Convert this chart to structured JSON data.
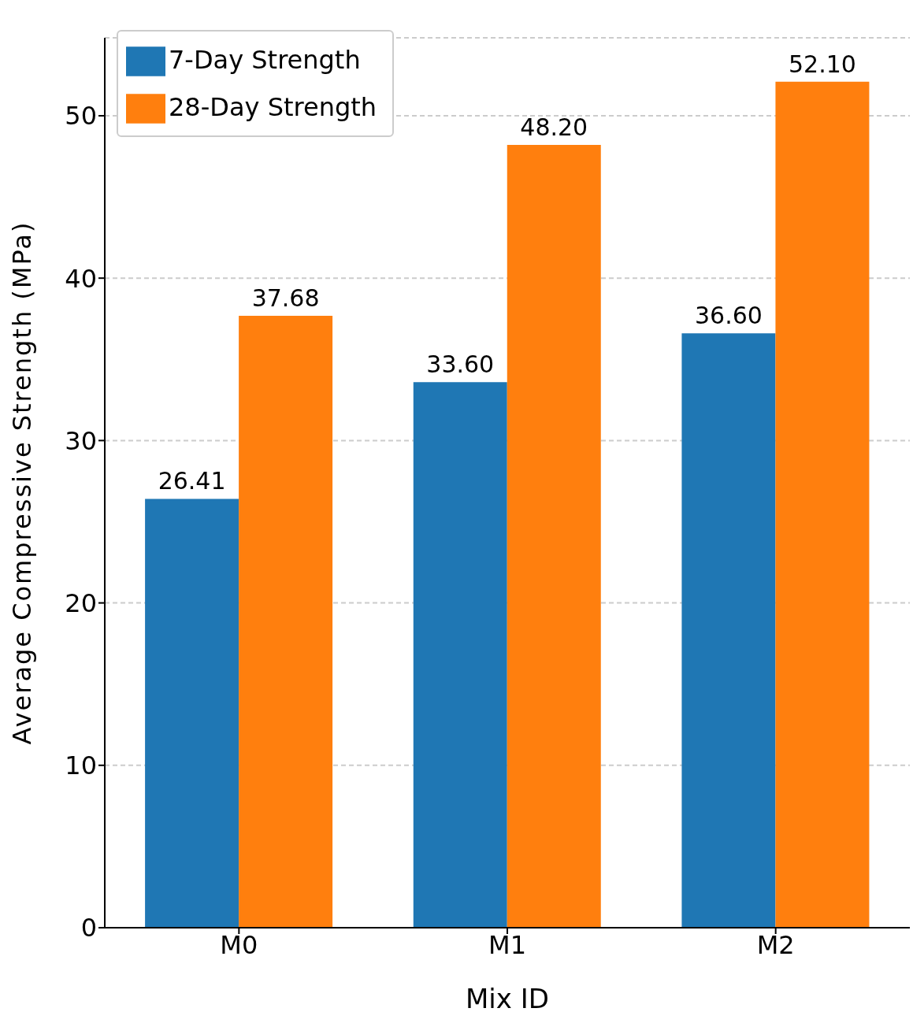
{
  "chart_data": {
    "type": "bar",
    "xlabel": "Mix ID",
    "ylabel": "Average Compressive Strength (MPa)",
    "categories": [
      "M0",
      "M1",
      "M2"
    ],
    "series": [
      {
        "name": "7-Day Strength",
        "color": "#1f77b4",
        "values": [
          26.41,
          33.6,
          36.6
        ],
        "value_labels": [
          "26.41",
          "33.60",
          "36.60"
        ]
      },
      {
        "name": "28-Day Strength",
        "color": "#ff7f0e",
        "values": [
          37.68,
          48.2,
          52.1
        ],
        "value_labels": [
          "37.68",
          "48.20",
          "52.10"
        ]
      }
    ],
    "ylim": [
      0,
      54.8
    ],
    "yticks": [
      0,
      10,
      20,
      30,
      40,
      50
    ],
    "grid": "y",
    "legend": "top left"
  }
}
